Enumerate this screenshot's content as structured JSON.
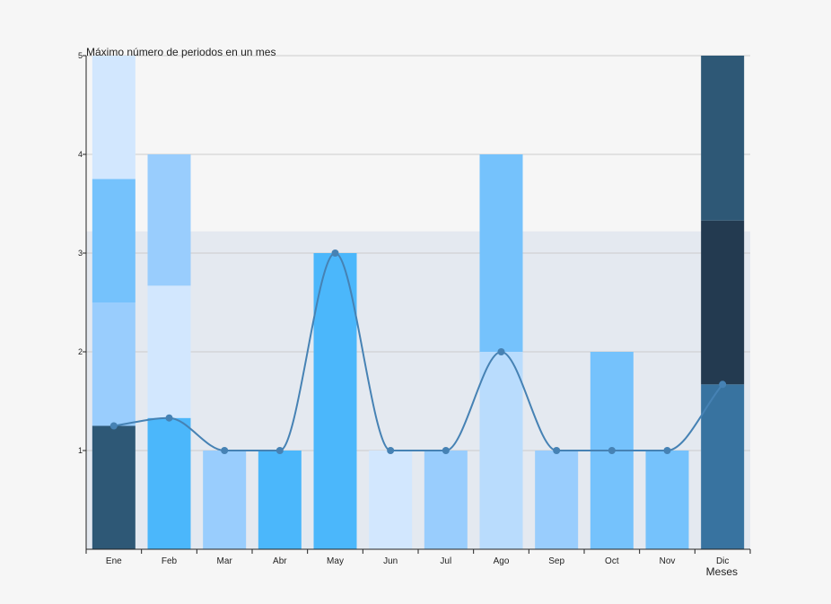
{
  "chart_data": {
    "type": "bar",
    "title": "Máximo número de periodos en un mes",
    "xlabel": "Meses",
    "ylabel": "",
    "ylim": [
      0,
      5
    ],
    "yticks": [
      1,
      2,
      3,
      4,
      5
    ],
    "grid": true,
    "shaded_band": {
      "from": 0,
      "to": 3.22,
      "color": "#e4e9f0"
    },
    "categories": [
      "Ene",
      "Feb",
      "Mar",
      "Abr",
      "May",
      "Jun",
      "Jul",
      "Ago",
      "Sep",
      "Oct",
      "Nov",
      "Dic"
    ],
    "stacks": [
      [
        {
          "value": 1.25,
          "color": "#2e5876"
        },
        {
          "value": 1.25,
          "color": "#99cdfd"
        },
        {
          "value": 1.25,
          "color": "#75c2fc"
        },
        {
          "value": 1.25,
          "color": "#d2e7fe"
        }
      ],
      [
        {
          "value": 1.33,
          "color": "#4bb7fb"
        },
        {
          "value": 1.34,
          "color": "#d2e7fe"
        },
        {
          "value": 1.33,
          "color": "#99cdfd"
        }
      ],
      [
        {
          "value": 1,
          "color": "#99cdfd"
        }
      ],
      [
        {
          "value": 1,
          "color": "#4bb7fb"
        }
      ],
      [
        {
          "value": 3,
          "color": "#4bb7fb"
        }
      ],
      [
        {
          "value": 1,
          "color": "#d2e7fe"
        }
      ],
      [
        {
          "value": 1,
          "color": "#99cdfd"
        }
      ],
      [
        {
          "value": 2,
          "color": "#b9dcfd"
        },
        {
          "value": 2,
          "color": "#75c2fc"
        }
      ],
      [
        {
          "value": 1,
          "color": "#99cdfd"
        }
      ],
      [
        {
          "value": 2,
          "color": "#75c2fc"
        }
      ],
      [
        {
          "value": 1,
          "color": "#75c2fc"
        }
      ],
      [
        {
          "value": 1.67,
          "color": "#3873a0"
        },
        {
          "value": 1.66,
          "color": "#233a50"
        },
        {
          "value": 1.67,
          "color": "#2e5876"
        }
      ]
    ],
    "line": {
      "values": [
        1.25,
        1.33,
        1,
        1,
        3,
        1,
        1,
        2,
        1,
        1,
        1,
        1.67
      ],
      "color": "#4682b4"
    }
  }
}
